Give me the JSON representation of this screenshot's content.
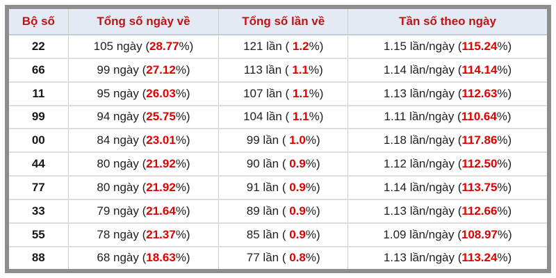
{
  "colors": {
    "header_background": "#e4eaf3",
    "header_text_red": "#c01414",
    "value_red": "#e00000",
    "body_text": "#202020",
    "frame_gray": "#8d8d8d",
    "grid_line": "#dedede"
  },
  "table": {
    "headers": [
      {
        "label": "Bộ số"
      },
      {
        "label": "Tổng số ngày về"
      },
      {
        "label": "Tổng số lần về"
      },
      {
        "label": "Tần số theo ngày"
      }
    ],
    "rows": [
      {
        "pair": "22",
        "days": {
          "prefix": "105 ngày (",
          "value": "28.77",
          "suffix": "%)"
        },
        "times": {
          "prefix": "121 lần ( ",
          "value": "1.2",
          "suffix": "%)"
        },
        "freq": {
          "prefix": "1.15 lần/ngày (",
          "value": "115.24",
          "suffix": "%)"
        }
      },
      {
        "pair": "66",
        "days": {
          "prefix": "99 ngày (",
          "value": "27.12",
          "suffix": "%)"
        },
        "times": {
          "prefix": "113 lần ( ",
          "value": "1.1",
          "suffix": "%)"
        },
        "freq": {
          "prefix": "1.14 lần/ngày (",
          "value": "114.14",
          "suffix": "%)"
        }
      },
      {
        "pair": "11",
        "days": {
          "prefix": "95 ngày (",
          "value": "26.03",
          "suffix": "%)"
        },
        "times": {
          "prefix": "107 lần ( ",
          "value": "1.1",
          "suffix": "%)"
        },
        "freq": {
          "prefix": "1.13 lần/ngày (",
          "value": "112.63",
          "suffix": "%)"
        }
      },
      {
        "pair": "99",
        "days": {
          "prefix": "94 ngày (",
          "value": "25.75",
          "suffix": "%)"
        },
        "times": {
          "prefix": "104 lần ( ",
          "value": "1.1",
          "suffix": "%)"
        },
        "freq": {
          "prefix": "1.11 lần/ngày (",
          "value": "110.64",
          "suffix": "%)"
        }
      },
      {
        "pair": "00",
        "days": {
          "prefix": "84 ngày (",
          "value": "23.01",
          "suffix": "%)"
        },
        "times": {
          "prefix": "99 lần ( ",
          "value": "1.0",
          "suffix": "%)"
        },
        "freq": {
          "prefix": "1.18 lần/ngày (",
          "value": "117.86",
          "suffix": "%)"
        }
      },
      {
        "pair": "44",
        "days": {
          "prefix": "80 ngày (",
          "value": "21.92",
          "suffix": "%)"
        },
        "times": {
          "prefix": "90 lần ( ",
          "value": "0.9",
          "suffix": "%)"
        },
        "freq": {
          "prefix": "1.12 lần/ngày (",
          "value": "112.50",
          "suffix": "%)"
        }
      },
      {
        "pair": "77",
        "days": {
          "prefix": "80 ngày (",
          "value": "21.92",
          "suffix": "%)"
        },
        "times": {
          "prefix": "91 lần ( ",
          "value": "0.9",
          "suffix": "%)"
        },
        "freq": {
          "prefix": "1.14 lần/ngày (",
          "value": "113.75",
          "suffix": "%)"
        }
      },
      {
        "pair": "33",
        "days": {
          "prefix": "79 ngày (",
          "value": "21.64",
          "suffix": "%)"
        },
        "times": {
          "prefix": "89 lần ( ",
          "value": "0.9",
          "suffix": "%)"
        },
        "freq": {
          "prefix": "1.13 lần/ngày (",
          "value": "112.66",
          "suffix": "%)"
        }
      },
      {
        "pair": "55",
        "days": {
          "prefix": "78 ngày (",
          "value": "21.37",
          "suffix": "%)"
        },
        "times": {
          "prefix": "85 lần ( ",
          "value": "0.9",
          "suffix": "%)"
        },
        "freq": {
          "prefix": "1.09 lần/ngày (",
          "value": "108.97",
          "suffix": "%)"
        }
      },
      {
        "pair": "88",
        "days": {
          "prefix": "68 ngày (",
          "value": "18.63",
          "suffix": "%)"
        },
        "times": {
          "prefix": "77 lần ( ",
          "value": "0.8",
          "suffix": "%)"
        },
        "freq": {
          "prefix": "1.13 lần/ngày (",
          "value": "113.24",
          "suffix": "%)"
        }
      }
    ]
  }
}
